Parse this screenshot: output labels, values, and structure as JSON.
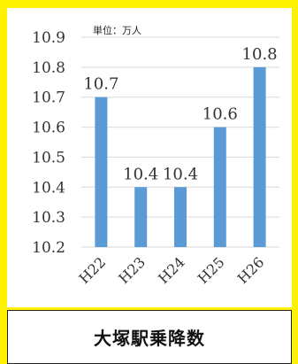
{
  "chart_data": {
    "type": "bar",
    "unit_note": "単位：万人",
    "categories": [
      "H22",
      "H23",
      "H24",
      "H25",
      "H26"
    ],
    "values": [
      10.7,
      10.4,
      10.4,
      10.6,
      10.8
    ],
    "data_labels": [
      "10.7",
      "10.4",
      "10.4",
      "10.6",
      "10.8"
    ],
    "yticks": [
      "10.2",
      "10.3",
      "10.4",
      "10.5",
      "10.6",
      "10.7",
      "10.8",
      "10.9"
    ],
    "ylim": [
      10.2,
      10.9
    ],
    "grid": true,
    "bar_color": "#5b9bd5"
  },
  "caption": "大塚駅乗降数",
  "frame_color": "#fff200"
}
